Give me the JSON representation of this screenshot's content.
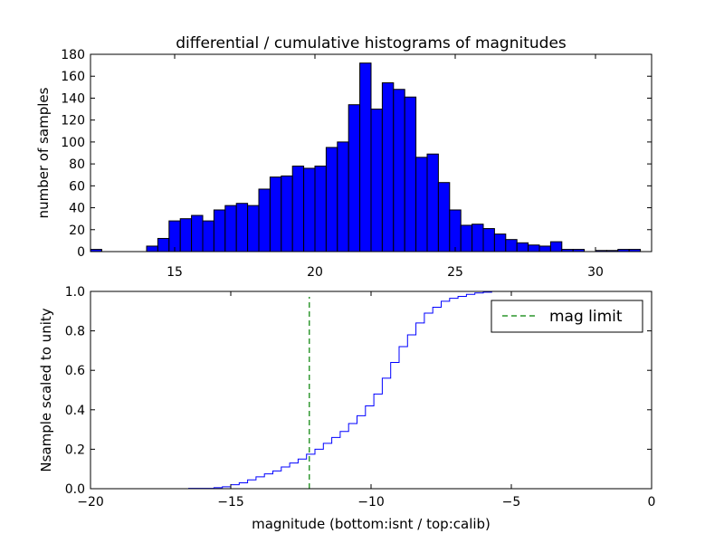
{
  "chart_data": [
    {
      "type": "bar",
      "title": "differential / cumulative histograms of magnitudes",
      "xlabel": "",
      "ylabel": "number of samples",
      "xlim": [
        12,
        32
      ],
      "ylim": [
        0,
        180
      ],
      "xticks": [
        15,
        20,
        25,
        30
      ],
      "yticks": [
        0,
        20,
        40,
        60,
        80,
        100,
        120,
        140,
        160,
        180
      ],
      "bin_start": 12.0,
      "bin_width": 0.4,
      "values": [
        2,
        0,
        0,
        0,
        0,
        5,
        12,
        28,
        30,
        33,
        28,
        38,
        42,
        44,
        42,
        57,
        68,
        69,
        78,
        76,
        78,
        95,
        100,
        134,
        172,
        130,
        154,
        148,
        141,
        86,
        89,
        63,
        38,
        24,
        25,
        21,
        16,
        11,
        8,
        6,
        5,
        9,
        2,
        2,
        0,
        1,
        1,
        2,
        2,
        0
      ],
      "bar_color": "#0000ff",
      "edge_color": "#000000"
    },
    {
      "type": "line",
      "title": "",
      "xlabel": "magnitude (bottom:isnt / top:calib)",
      "ylabel": "Nsample scaled to unity",
      "xlim": [
        -20,
        0
      ],
      "ylim": [
        0.0,
        1.0
      ],
      "xticks": [
        -20,
        -15,
        -10,
        -5,
        0
      ],
      "yticks": [
        0.0,
        0.2,
        0.4,
        0.6,
        0.8,
        1.0
      ],
      "ytick_labels": [
        "0.0",
        "0.2",
        "0.4",
        "0.6",
        "0.8",
        "1.0"
      ],
      "series": [
        {
          "name": "cumulative",
          "style": "steps",
          "color": "#0000ff",
          "x": [
            -20,
            -16.5,
            -15.6,
            -15.3,
            -15.0,
            -14.7,
            -14.4,
            -14.1,
            -13.8,
            -13.5,
            -13.2,
            -12.9,
            -12.6,
            -12.3,
            -12.0,
            -11.7,
            -11.4,
            -11.1,
            -10.8,
            -10.5,
            -10.2,
            -9.9,
            -9.6,
            -9.3,
            -9.0,
            -8.7,
            -8.4,
            -8.1,
            -7.8,
            -7.5,
            -7.2,
            -6.9,
            -6.6,
            -6.3,
            -6.0,
            -5.7,
            -0.05
          ],
          "y": [
            0.0,
            0.002,
            0.005,
            0.01,
            0.02,
            0.03,
            0.045,
            0.06,
            0.075,
            0.09,
            0.11,
            0.13,
            0.15,
            0.175,
            0.2,
            0.23,
            0.26,
            0.29,
            0.33,
            0.37,
            0.42,
            0.48,
            0.56,
            0.64,
            0.72,
            0.78,
            0.84,
            0.89,
            0.92,
            0.95,
            0.965,
            0.975,
            0.985,
            0.992,
            0.996,
            1.0,
            1.0
          ]
        }
      ],
      "vline": {
        "name": "mag limit",
        "x": -12.2,
        "color": "#008000",
        "style": "dashed"
      },
      "legend": {
        "labels": [
          "mag limit"
        ],
        "placement": "top-right"
      }
    }
  ]
}
